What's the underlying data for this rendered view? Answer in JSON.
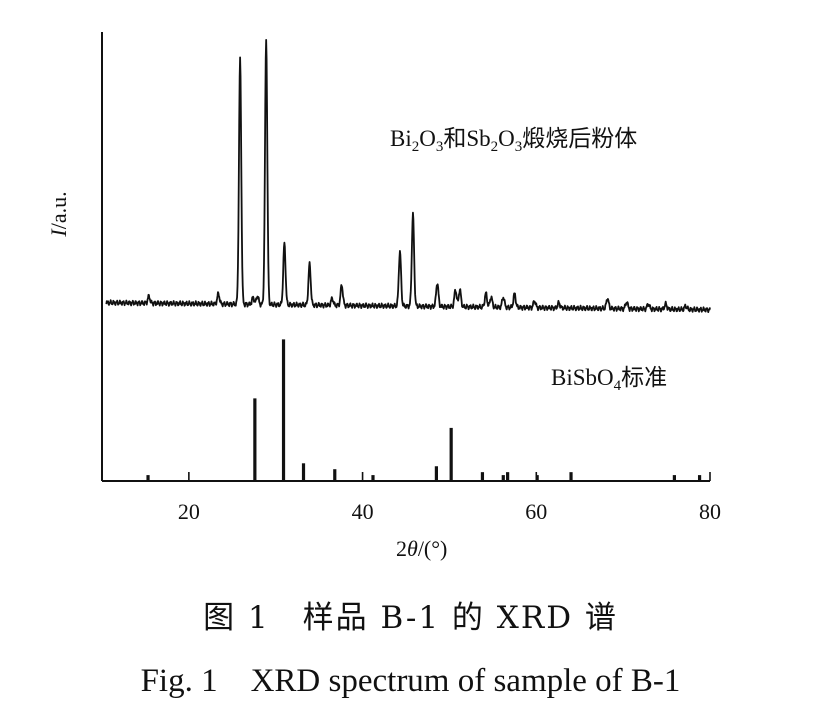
{
  "chart_data": {
    "type": "line",
    "xlabel_prefix": "2",
    "xlabel_var": "θ",
    "xlabel_unit": "/(°)",
    "ylabel_var": "I",
    "ylabel_unit": "/a.u.",
    "xlim": [
      10,
      80
    ],
    "xticks": [
      20,
      40,
      60,
      80
    ],
    "y_ticks_labeled": false,
    "series": [
      {
        "name_parts": [
          "Bi",
          "2",
          "O",
          "3",
          "和Sb",
          "2",
          "O",
          "3",
          "煅烧后粉体"
        ],
        "kind": "pattern",
        "baseline": 6,
        "peaks": [
          {
            "x": 15.4,
            "y": 2
          },
          {
            "x": 23.4,
            "y": 3
          },
          {
            "x": 25.9,
            "y": 72
          },
          {
            "x": 27.4,
            "y": 2
          },
          {
            "x": 27.9,
            "y": 2.5
          },
          {
            "x": 28.9,
            "y": 78
          },
          {
            "x": 31.0,
            "y": 18
          },
          {
            "x": 33.9,
            "y": 12
          },
          {
            "x": 36.5,
            "y": 2
          },
          {
            "x": 37.6,
            "y": 6
          },
          {
            "x": 44.3,
            "y": 16
          },
          {
            "x": 45.8,
            "y": 27
          },
          {
            "x": 48.6,
            "y": 7
          },
          {
            "x": 50.7,
            "y": 5
          },
          {
            "x": 51.2,
            "y": 5
          },
          {
            "x": 54.2,
            "y": 4
          },
          {
            "x": 54.8,
            "y": 3
          },
          {
            "x": 56.2,
            "y": 3
          },
          {
            "x": 57.5,
            "y": 4
          },
          {
            "x": 59.8,
            "y": 2
          },
          {
            "x": 62.6,
            "y": 1.5
          },
          {
            "x": 68.2,
            "y": 3
          },
          {
            "x": 70.4,
            "y": 2
          },
          {
            "x": 72.9,
            "y": 1.5
          },
          {
            "x": 74.9,
            "y": 1.5
          },
          {
            "x": 77.2,
            "y": 1
          }
        ]
      },
      {
        "name_parts": [
          "BiSbO",
          "4",
          "标准"
        ],
        "kind": "sticks",
        "sticks": [
          {
            "x": 15.3,
            "y": 1
          },
          {
            "x": 27.6,
            "y": 14
          },
          {
            "x": 30.9,
            "y": 24
          },
          {
            "x": 33.2,
            "y": 3
          },
          {
            "x": 36.8,
            "y": 2
          },
          {
            "x": 41.2,
            "y": 1
          },
          {
            "x": 48.5,
            "y": 2.5
          },
          {
            "x": 50.2,
            "y": 9
          },
          {
            "x": 53.8,
            "y": 1.5
          },
          {
            "x": 56.2,
            "y": 1
          },
          {
            "x": 56.7,
            "y": 1.5
          },
          {
            "x": 60.1,
            "y": 1
          },
          {
            "x": 64.0,
            "y": 1.5
          },
          {
            "x": 75.9,
            "y": 1
          },
          {
            "x": 78.8,
            "y": 1
          }
        ]
      }
    ]
  },
  "caption": {
    "cn": "图 1　样品 B-1 的 XRD 谱",
    "en": "Fig. 1　XRD spectrum of sample of B-1"
  }
}
